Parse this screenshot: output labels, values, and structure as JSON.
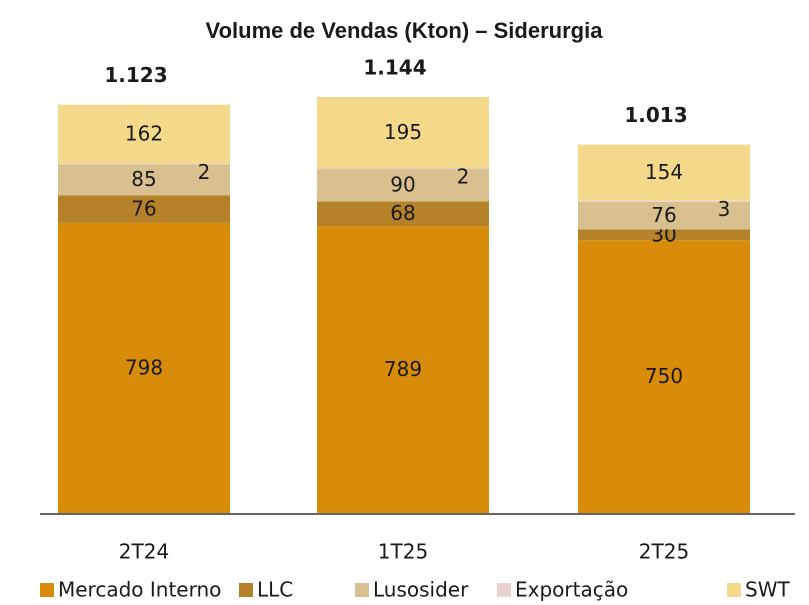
{
  "chart_data": {
    "type": "stacked_bar",
    "title": "Volume de Vendas (Kton) – Siderurgia",
    "categories": [
      "2T24",
      "1T25",
      "2T25"
    ],
    "series": [
      {
        "name": "Mercado Interno",
        "color": "#d98c0a",
        "values": [
          798,
          789,
          750
        ]
      },
      {
        "name": "LLC",
        "color": "#b5822a",
        "values": [
          76,
          68,
          30
        ]
      },
      {
        "name": "Lusosider",
        "color": "#d9c08f",
        "values": [
          85,
          90,
          76
        ]
      },
      {
        "name": "Exportação",
        "color": "#ead3cf",
        "values": [
          2,
          2,
          3
        ]
      },
      {
        "name": "SWT",
        "color": "#f5d98a",
        "values": [
          162,
          195,
          154
        ]
      }
    ],
    "totals": {
      "values": [
        1123,
        1144,
        1013
      ],
      "value_labels": [
        "1.123",
        "1.144",
        "1.013"
      ]
    },
    "legend": "bottom"
  }
}
